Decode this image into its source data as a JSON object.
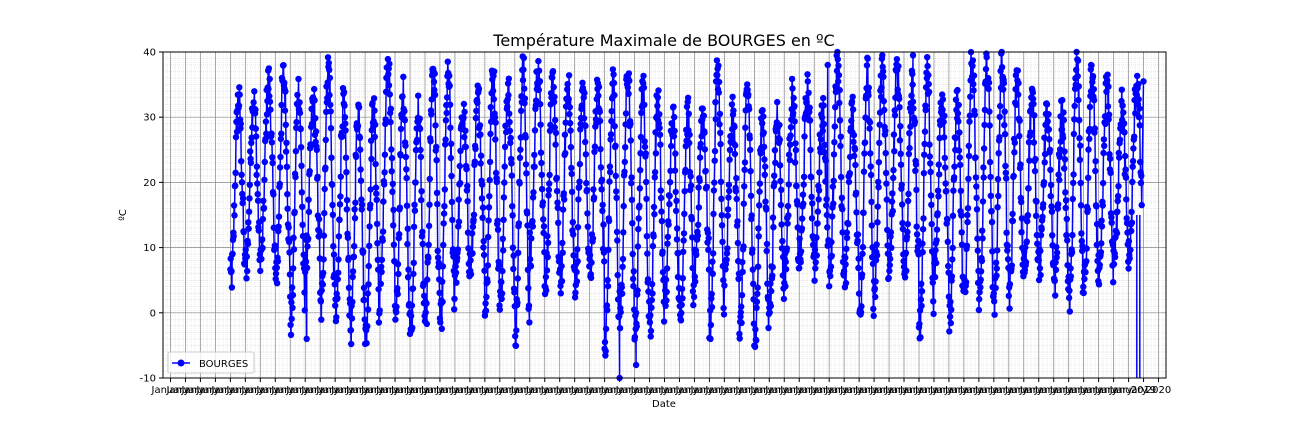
{
  "chart_data": {
    "type": "line",
    "title": "Température Maximale de BOURGES en ºC",
    "xlabel": "Date",
    "ylabel": "ºC",
    "ylim": [
      -10,
      40
    ],
    "yticks": [
      -10,
      0,
      10,
      20,
      30,
      40
    ],
    "xlim": [
      1953.5,
      2020.5
    ],
    "xtick_labels": [
      "January",
      "January",
      "January",
      "January",
      "January",
      "January",
      "January",
      "January",
      "January",
      "January",
      "January",
      "January",
      "January",
      "January",
      "January",
      "January",
      "January",
      "January",
      "January",
      "January",
      "January",
      "January",
      "January",
      "January",
      "January",
      "January",
      "January",
      "January",
      "January",
      "January",
      "January",
      "January",
      "January",
      "January",
      "January",
      "January",
      "January",
      "January",
      "January",
      "January",
      "January",
      "January",
      "January",
      "January",
      "January",
      "January",
      "January",
      "January",
      "January",
      "January",
      "January",
      "January",
      "January",
      "January",
      "January",
      "January",
      "January",
      "January",
      "January",
      "January",
      "January",
      "January",
      "January",
      "January",
      "January",
      "2019",
      "2020"
    ],
    "x_start_year": 1958,
    "x_end_year": 2018.9,
    "grid": true,
    "minor_grid": true,
    "legend_position": "lower-left",
    "series": [
      {
        "name": "BOURGES",
        "color": "#0000ff",
        "marker": "circle",
        "annual_min_low": -4,
        "annual_min_high": 10,
        "annual_max_low": 30,
        "annual_max_high": 39,
        "extremes": [
          {
            "x": 1984.0,
            "y": -10
          },
          {
            "x": 1985.1,
            "y": -8
          },
          {
            "x": 1963.1,
            "y": -4
          },
          {
            "x": 1997.9,
            "y": 38
          },
          {
            "x": 2003.6,
            "y": 39.5
          },
          {
            "x": 2015.5,
            "y": 38
          },
          {
            "x": 2019.0,
            "y": 35.5
          }
        ]
      }
    ]
  }
}
